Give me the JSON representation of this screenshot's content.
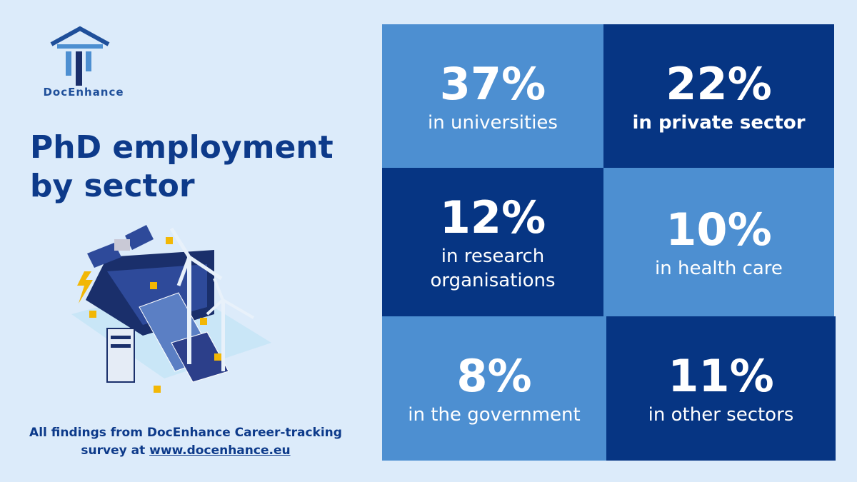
{
  "logo": {
    "text": "DocEnhance"
  },
  "header": {
    "title": "PhD employment by sector"
  },
  "tiles": [
    {
      "value": "37%",
      "label": "in universities"
    },
    {
      "value": "22%",
      "label": "in private sector"
    },
    {
      "value": "12%",
      "label": "in research organisations"
    },
    {
      "value": "10%",
      "label": "in health care"
    },
    {
      "value": "8%",
      "label": "in the government"
    },
    {
      "value": "11%",
      "label": "in other sectors"
    }
  ],
  "footer": {
    "text": "All findings from DocEnhance Career-tracking survey at",
    "link": "www.docenhance.eu"
  }
}
